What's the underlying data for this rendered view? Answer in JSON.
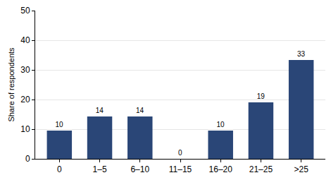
{
  "chart_data": {
    "type": "bar",
    "y_label": "Share of respondents",
    "categories": [
      "0",
      "1–5",
      "6–10",
      "11–15",
      "16–20",
      "21–25",
      ">25"
    ],
    "values": [
      9.52,
      14.29,
      14.29,
      0,
      9.52,
      19.05,
      33.33
    ],
    "value_labels": [
      "10",
      "14",
      "14",
      "0",
      "10",
      "19",
      "33"
    ],
    "data_labels": true,
    "color": "#2a4677",
    "ylim": [
      0,
      50
    ],
    "yticks": [
      0,
      10,
      20,
      30,
      40,
      50
    ],
    "grid": true
  }
}
